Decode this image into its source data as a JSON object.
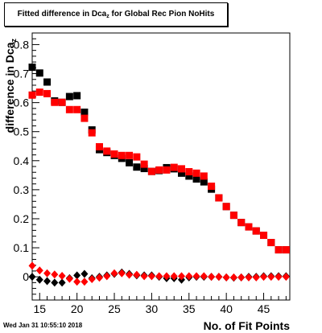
{
  "title": {
    "prefix": "Fitted difference in Dca",
    "subscript": "z",
    "suffix": " for Global Rec Pion NoHits"
  },
  "timestamp": "Wed Jan 31 10:55:10 2018",
  "colors": {
    "black_series": "#000000",
    "red_series": "#ff0000",
    "frame": "#000000"
  },
  "chart_data": {
    "type": "scatter",
    "xlabel": "No. of Fit Points",
    "ylabel": "difference in Dca",
    "ylabel_subscript": "z",
    "xlim": [
      14,
      48.5
    ],
    "ylim": [
      -0.08,
      0.84
    ],
    "x_ticks": [
      15,
      20,
      25,
      30,
      35,
      40,
      45
    ],
    "y_ticks": [
      0,
      0.1,
      0.2,
      0.3,
      0.4,
      0.5,
      0.6,
      0.7,
      0.8
    ],
    "grid": false,
    "series": [
      {
        "marker": "square",
        "color": "#000000",
        "x": [
          14,
          15,
          16,
          17,
          18,
          19,
          20,
          21,
          22,
          23,
          24,
          25,
          26,
          27,
          28,
          29,
          30,
          31,
          32,
          33,
          34,
          35,
          36,
          37,
          38,
          39,
          40,
          41,
          42,
          43,
          44,
          45,
          46,
          47,
          48
        ],
        "y": [
          0.722,
          0.702,
          0.671,
          0.606,
          0.601,
          0.621,
          0.624,
          0.567,
          0.506,
          0.438,
          0.428,
          0.418,
          0.408,
          0.393,
          0.378,
          0.373,
          0.363,
          0.366,
          0.376,
          0.372,
          0.357,
          0.347,
          0.337,
          0.327,
          0.302,
          0.272,
          0.242,
          0.212,
          0.187,
          0.172,
          0.158,
          0.143,
          0.118,
          0.093,
          0.093
        ]
      },
      {
        "marker": "square",
        "color": "#ff0000",
        "x": [
          14,
          15,
          16,
          17,
          18,
          19,
          20,
          21,
          22,
          23,
          24,
          25,
          26,
          27,
          28,
          29,
          30,
          31,
          32,
          33,
          34,
          35,
          36,
          37,
          38,
          39,
          40,
          41,
          42,
          43,
          44,
          45,
          46,
          47,
          48
        ],
        "y": [
          0.626,
          0.636,
          0.631,
          0.601,
          0.601,
          0.576,
          0.576,
          0.546,
          0.496,
          0.448,
          0.433,
          0.423,
          0.418,
          0.418,
          0.413,
          0.388,
          0.363,
          0.368,
          0.368,
          0.377,
          0.372,
          0.362,
          0.357,
          0.347,
          0.312,
          0.272,
          0.242,
          0.212,
          0.187,
          0.172,
          0.158,
          0.143,
          0.118,
          0.093,
          0.093
        ]
      },
      {
        "marker": "diamond",
        "color": "#000000",
        "x": [
          14,
          15,
          16,
          17,
          18,
          19,
          20,
          21,
          22,
          23,
          24,
          25,
          26,
          27,
          28,
          29,
          30,
          31,
          32,
          33,
          34,
          35,
          36,
          37,
          38,
          39,
          40,
          41,
          42,
          43,
          44,
          45,
          46,
          47,
          48
        ],
        "y": [
          0.0,
          -0.01,
          -0.015,
          -0.02,
          -0.02,
          -0.005,
          0.005,
          0.01,
          -0.005,
          0.0,
          0.005,
          0.01,
          0.015,
          0.01,
          0.005,
          0.005,
          0.005,
          0.0,
          -0.005,
          -0.005,
          -0.01,
          -0.002,
          0.0,
          0.0,
          0.0,
          0.0,
          -0.002,
          -0.003,
          -0.002,
          0.0,
          0.0,
          0.002,
          0.002,
          0.002,
          0.002
        ]
      },
      {
        "marker": "diamond",
        "color": "#ff0000",
        "x": [
          14,
          15,
          16,
          17,
          18,
          19,
          20,
          21,
          22,
          23,
          24,
          25,
          26,
          27,
          28,
          29,
          30,
          31,
          32,
          33,
          34,
          35,
          36,
          37,
          38,
          39,
          40,
          41,
          42,
          43,
          44,
          45,
          46,
          47,
          48
        ],
        "y": [
          0.038,
          0.022,
          0.012,
          0.008,
          0.003,
          -0.007,
          -0.017,
          -0.017,
          -0.008,
          -0.003,
          0.002,
          0.012,
          0.012,
          0.007,
          0.007,
          0.002,
          0.002,
          0.002,
          0.002,
          0.002,
          0.002,
          0.002,
          0.002,
          0.002,
          0.0,
          0.0,
          -0.002,
          -0.002,
          -0.002,
          -0.002,
          -0.002,
          0.0,
          0.0,
          0.0,
          0.0
        ]
      }
    ]
  }
}
